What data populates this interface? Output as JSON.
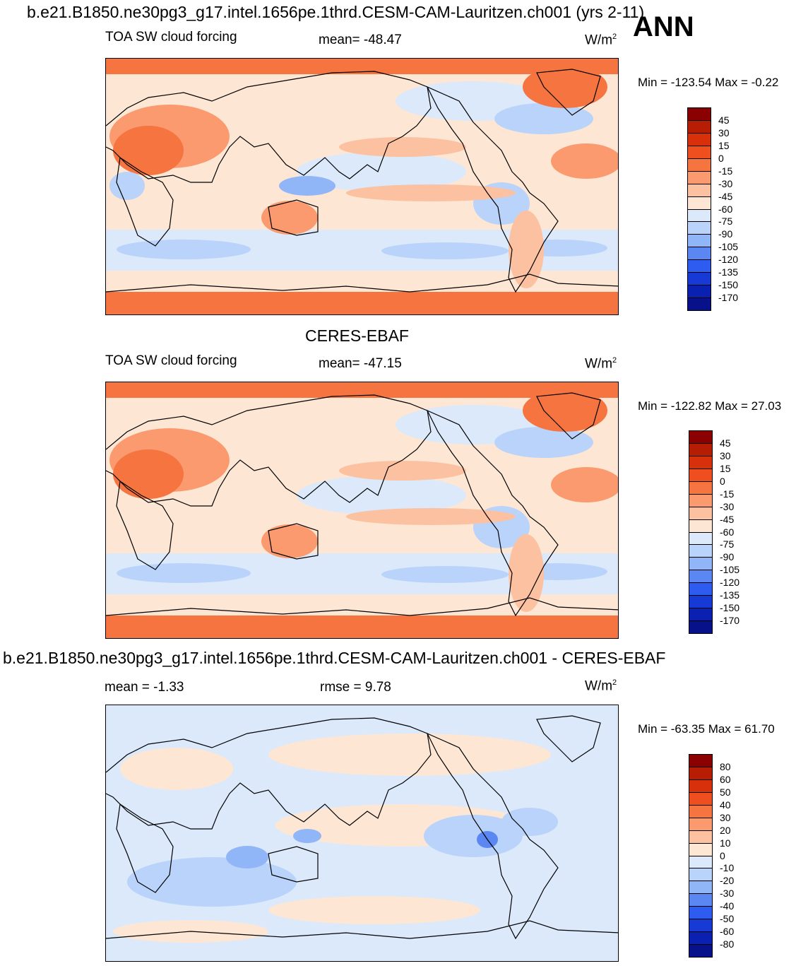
{
  "header": {
    "title": "b.e21.B1850.ne30pg3_g17.intel.1656pe.1thrd.CESM-CAM-Lauritzen.ch001 (yrs 2-11)",
    "season": "ANN"
  },
  "panels": [
    {
      "variable": "TOA SW cloud forcing",
      "mean_label": "mean= -48.47",
      "units": "W/m",
      "units_sup": "2",
      "minmax": "Min = -123.54 Max =  -0.22"
    },
    {
      "title": "CERES-EBAF",
      "variable": "TOA SW cloud forcing",
      "mean_label": "mean= -47.15",
      "units": "W/m",
      "units_sup": "2",
      "minmax": "Min = -122.82 Max =  27.03"
    },
    {
      "title": "b.e21.B1850.ne30pg3_g17.intel.1656pe.1thrd.CESM-CAM-Lauritzen.ch001 - CERES-EBAF",
      "mean_label": "mean =  -1.33",
      "rmse_label": "rmse =   9.78",
      "units": "W/m",
      "units_sup": "2",
      "minmax": "Min = -63.35 Max =  61.70"
    }
  ],
  "colorbars": {
    "field_levels": [
      "45",
      "30",
      "15",
      "0",
      "-15",
      "-30",
      "-45",
      "-60",
      "-75",
      "-90",
      "-105",
      "-120",
      "-135",
      "-150",
      "-170"
    ],
    "field_colors": [
      "#8b0000",
      "#b71c05",
      "#d8300a",
      "#ef4e1e",
      "#f6743f",
      "#fa9a6e",
      "#fcc1a0",
      "#fde7d4",
      "#dbe9fb",
      "#b9d3fa",
      "#91b6f7",
      "#5a87f2",
      "#2e5cf0",
      "#1739d6",
      "#0a20b0",
      "#06118a"
    ],
    "diff_levels": [
      "80",
      "60",
      "50",
      "40",
      "30",
      "20",
      "10",
      "0",
      "-10",
      "-20",
      "-30",
      "-40",
      "-50",
      "-60",
      "-80"
    ],
    "diff_colors": [
      "#8b0000",
      "#b71c05",
      "#d8300a",
      "#ef4e1e",
      "#f6743f",
      "#fa9a6e",
      "#fcc1a0",
      "#fde7d4",
      "#dbe9fb",
      "#b9d3fa",
      "#91b6f7",
      "#5a87f2",
      "#2e5cf0",
      "#1739d6",
      "#0a20b0",
      "#06118a"
    ]
  },
  "chart_data": [
    {
      "type": "heatmap",
      "title": "b.e21.B1850.ne30pg3_g17.intel.1656pe.1thrd.CESM-CAM-Lauritzen.ch001 (yrs 2-11)",
      "subtitle": "TOA SW cloud forcing",
      "units": "W/m2",
      "mean": -48.47,
      "min": -123.54,
      "max": -0.22,
      "levels": [
        45,
        30,
        15,
        0,
        -15,
        -30,
        -45,
        -60,
        -75,
        -90,
        -105,
        -120,
        -135,
        -150,
        -170
      ]
    },
    {
      "type": "heatmap",
      "title": "CERES-EBAF",
      "subtitle": "TOA SW cloud forcing",
      "units": "W/m2",
      "mean": -47.15,
      "min": -122.82,
      "max": 27.03,
      "levels": [
        45,
        30,
        15,
        0,
        -15,
        -30,
        -45,
        -60,
        -75,
        -90,
        -105,
        -120,
        -135,
        -150,
        -170
      ]
    },
    {
      "type": "heatmap",
      "title": "b.e21.B1850.ne30pg3_g17.intel.1656pe.1thrd.CESM-CAM-Lauritzen.ch001 - CERES-EBAF",
      "units": "W/m2",
      "mean": -1.33,
      "rmse": 9.78,
      "min": -63.35,
      "max": 61.7,
      "levels": [
        80,
        60,
        50,
        40,
        30,
        20,
        10,
        0,
        -10,
        -20,
        -30,
        -40,
        -50,
        -60,
        -80
      ]
    }
  ]
}
